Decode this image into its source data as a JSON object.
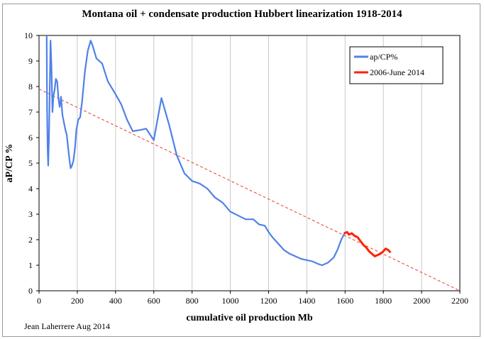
{
  "chart_data": {
    "type": "line",
    "title": "Montana oil + condensate production Hubbert linearization 1918-2014",
    "xlabel": "cumulative oil production Mb",
    "ylabel": "aP/CP %",
    "xlim": [
      0,
      2200
    ],
    "ylim": [
      0,
      10
    ],
    "x_ticks": [
      "0",
      "200",
      "400",
      "600",
      "800",
      "1000",
      "1200",
      "1400",
      "1600",
      "1800",
      "2000",
      "2200"
    ],
    "y_ticks": [
      "0",
      "1",
      "2",
      "3",
      "4",
      "5",
      "6",
      "7",
      "8",
      "9",
      "10"
    ],
    "grid": "vertical",
    "legend_position": "top-right",
    "series": [
      {
        "name": "ap/CP%",
        "color": "#4f81e8",
        "x": [
          40,
          42,
          45,
          48,
          52,
          55,
          60,
          65,
          70,
          75,
          82,
          88,
          95,
          102,
          108,
          115,
          122,
          130,
          138,
          145,
          152,
          158,
          165,
          172,
          180,
          188,
          195,
          205,
          215,
          225,
          240,
          255,
          270,
          280,
          300,
          330,
          360,
          400,
          430,
          460,
          490,
          530,
          560,
          600,
          640,
          680,
          720,
          760,
          800,
          840,
          880,
          920,
          960,
          1000,
          1040,
          1080,
          1120,
          1150,
          1180,
          1200,
          1220,
          1250,
          1280,
          1310,
          1340,
          1370,
          1400,
          1430,
          1460,
          1480,
          1510,
          1540,
          1560,
          1580,
          1600
        ],
        "y": [
          10,
          7.2,
          5.6,
          4.9,
          6.0,
          7.4,
          9.8,
          8.8,
          7.0,
          7.6,
          7.9,
          8.3,
          8.2,
          7.5,
          7.2,
          7.6,
          6.9,
          6.6,
          6.3,
          6.1,
          5.6,
          5.2,
          4.8,
          4.9,
          5.1,
          5.6,
          6.3,
          6.7,
          6.8,
          7.4,
          8.6,
          9.4,
          9.8,
          9.6,
          9.1,
          8.9,
          8.2,
          7.7,
          7.3,
          6.7,
          6.25,
          6.3,
          6.35,
          5.9,
          7.55,
          6.5,
          5.3,
          4.6,
          4.3,
          4.2,
          4.0,
          3.65,
          3.45,
          3.1,
          2.95,
          2.8,
          2.8,
          2.6,
          2.55,
          2.3,
          2.1,
          1.85,
          1.6,
          1.45,
          1.35,
          1.25,
          1.2,
          1.15,
          1.05,
          1.0,
          1.1,
          1.3,
          1.6,
          2.0,
          2.3
        ]
      },
      {
        "name": "2006-June 2014",
        "color": "#ff2200",
        "x": [
          1595,
          1610,
          1620,
          1635,
          1650,
          1665,
          1680,
          1695,
          1710,
          1725,
          1740,
          1755,
          1770,
          1785,
          1800,
          1812,
          1825,
          1838
        ],
        "y": [
          2.25,
          2.3,
          2.2,
          2.25,
          2.15,
          2.1,
          1.95,
          1.8,
          1.7,
          1.55,
          1.45,
          1.35,
          1.4,
          1.45,
          1.55,
          1.65,
          1.6,
          1.5
        ]
      }
    ],
    "trend_line": {
      "x": [
        0,
        2200
      ],
      "y": [
        7.9,
        0
      ]
    }
  },
  "credit": "Jean Laherrere Aug 2014"
}
